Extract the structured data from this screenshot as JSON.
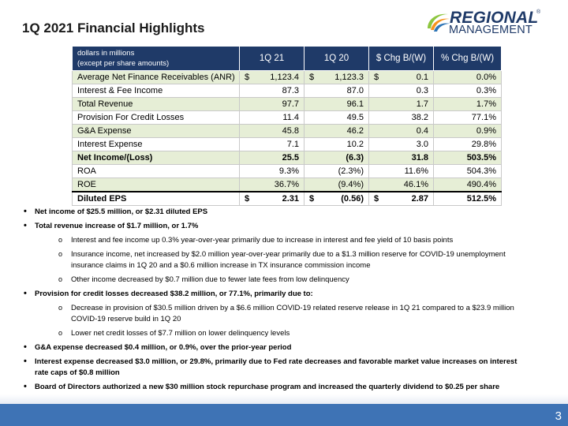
{
  "slide": {
    "title": "1Q 2021 Financial Highlights",
    "page_number": "3"
  },
  "logo": {
    "line1": "REGIONAL",
    "line2": "MANAGEMENT",
    "registered": "®",
    "colors": {
      "navy": "#1f3a68",
      "green": "#8dc63f",
      "orange": "#f7941d",
      "blue": "#2e75b6"
    }
  },
  "table": {
    "header": {
      "label_line1": "dollars in millions",
      "label_line2": "(except per share amounts)",
      "col1": "1Q 21",
      "col2": "1Q 20",
      "col3": "$ Chg B/(W)",
      "col4": "% Chg B/(W)"
    },
    "rows": [
      {
        "label": "Average Net Finance Receivables (ANR)",
        "c1s": "$",
        "c1": "1,123.4",
        "c2s": "$",
        "c2": "1,123.3",
        "c3s": "$",
        "c3": "0.1",
        "c4": "0.0%"
      },
      {
        "label": "Interest & Fee Income",
        "c1s": "",
        "c1": "87.3",
        "c2s": "",
        "c2": "87.0",
        "c3s": "",
        "c3": "0.3",
        "c4": "0.3%"
      },
      {
        "label": "Total Revenue",
        "c1s": "",
        "c1": "97.7",
        "c2s": "",
        "c2": "96.1",
        "c3s": "",
        "c3": "1.7",
        "c4": "1.7%"
      },
      {
        "label": "Provision For Credit Losses",
        "c1s": "",
        "c1": "11.4",
        "c2s": "",
        "c2": "49.5",
        "c3s": "",
        "c3": "38.2",
        "c4": "77.1%"
      },
      {
        "label": "G&A Expense",
        "c1s": "",
        "c1": "45.8",
        "c2s": "",
        "c2": "46.2",
        "c3s": "",
        "c3": "0.4",
        "c4": "0.9%"
      },
      {
        "label": "Interest Expense",
        "c1s": "",
        "c1": "7.1",
        "c2s": "",
        "c2": "10.2",
        "c3s": "",
        "c3": "3.0",
        "c4": "29.8%"
      },
      {
        "label": "Net Income/(Loss)",
        "c1s": "",
        "c1": "25.5",
        "c2s": "",
        "c2": "(6.3)",
        "c3s": "",
        "c3": "31.8",
        "c4": "503.5%"
      },
      {
        "label": "ROA",
        "c1s": "",
        "c1": "9.3%",
        "c2s": "",
        "c2": "(2.3%)",
        "c3s": "",
        "c3": "11.6%",
        "c4": "504.3%"
      },
      {
        "label": "ROE",
        "c1s": "",
        "c1": "36.7%",
        "c2s": "",
        "c2": "(9.4%)",
        "c3s": "",
        "c3": "46.1%",
        "c4": "490.4%"
      },
      {
        "label": "Diluted EPS",
        "c1s": "$",
        "c1": "2.31",
        "c2s": "$",
        "c2": "(0.56)",
        "c3s": "$",
        "c3": "2.87",
        "c4": "512.5%"
      }
    ]
  },
  "bullets": {
    "b1": "Net income of $25.5 million, or $2.31 diluted EPS",
    "b2": "Total revenue increase of $1.7 million, or 1.7%",
    "b2_s1": "Interest and fee income up 0.3% year-over-year primarily due to increase in interest and fee yield of 10 basis points",
    "b2_s2": "Insurance income, net increased by $2.0 million year-over-year  primarily due to a $1.3 million reserve for COVID-19 unemployment insurance claims in 1Q 20 and a $0.6 million increase in TX insurance commission income",
    "b2_s3": "Other income decreased by $0.7 million due to fewer late fees from low delinquency",
    "b3": "Provision for credit losses decreased $38.2 million, or 77.1%, primarily due to:",
    "b3_s1": "Decrease in provision of $30.5 million driven by a $6.6 million COVID-19 related reserve release in 1Q 21 compared to a $23.9 million COVID-19 reserve build in 1Q 20",
    "b3_s2": "Lower net credit losses of $7.7 million on lower delinquency levels",
    "b4": "G&A expense decreased $0.4 million, or 0.9%, over the prior-year period",
    "b5": "Interest expense decreased $3.0 million, or 29.8%, primarily due to Fed rate decreases and favorable market value increases on interest rate caps of $0.8 million",
    "b6": "Board of Directors authorized a new $30 million stock repurchase program and increased the quarterly dividend to $0.25 per share"
  }
}
